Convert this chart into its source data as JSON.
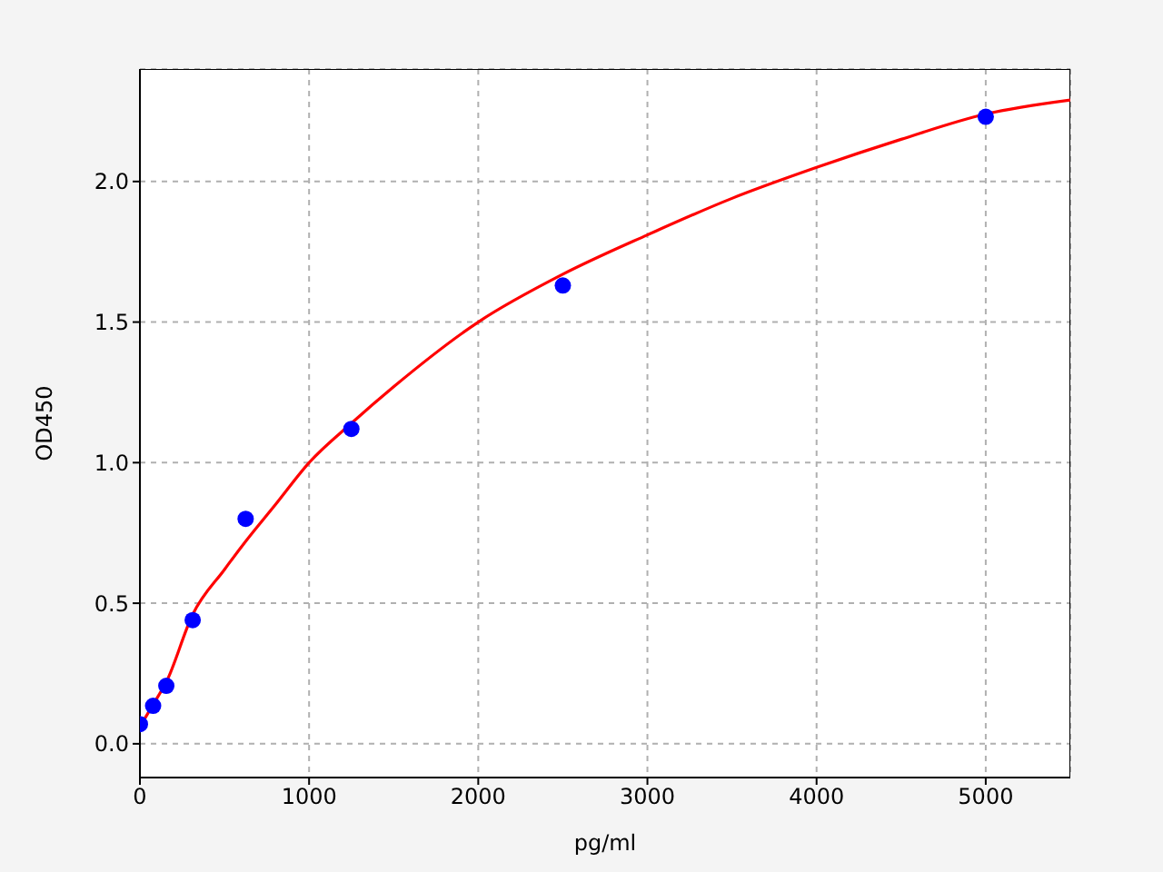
{
  "chart_data": {
    "type": "scatter",
    "xlabel": "pg/ml",
    "ylabel": "OD450",
    "xlim": [
      0,
      5500
    ],
    "ylim": [
      -0.12,
      2.4
    ],
    "xticks": [
      0,
      1000,
      2000,
      3000,
      4000,
      5000
    ],
    "yticks": [
      {
        "value": 0,
        "label": "0.0"
      },
      {
        "value": 0.5,
        "label": "0.5"
      },
      {
        "value": 1,
        "label": "1.0"
      },
      {
        "value": 1.5,
        "label": "1.5"
      },
      {
        "value": 2,
        "label": "2.0"
      }
    ],
    "grid": true,
    "marker": "circle",
    "series": [
      {
        "type": "scatter",
        "color": "#0000ff",
        "x": [
          0,
          78,
          156,
          312,
          625,
          1250,
          2500,
          5000
        ],
        "values": [
          0.07,
          0.135,
          0.206,
          0.44,
          0.8,
          1.12,
          1.63,
          2.23
        ]
      },
      {
        "type": "line",
        "color": "#ff0000",
        "marker": "none",
        "line_style": "solid",
        "x": [
          0,
          78,
          156,
          312,
          500,
          625,
          800,
          1000,
          1250,
          1500,
          2000,
          2500,
          3000,
          3500,
          4000,
          4500,
          5000,
          5500
        ],
        "values": [
          0.06,
          0.14,
          0.22,
          0.46,
          0.62,
          0.72,
          0.85,
          1.0,
          1.14,
          1.27,
          1.5,
          1.67,
          1.81,
          1.94,
          2.05,
          2.15,
          2.24,
          2.29
        ]
      }
    ]
  }
}
